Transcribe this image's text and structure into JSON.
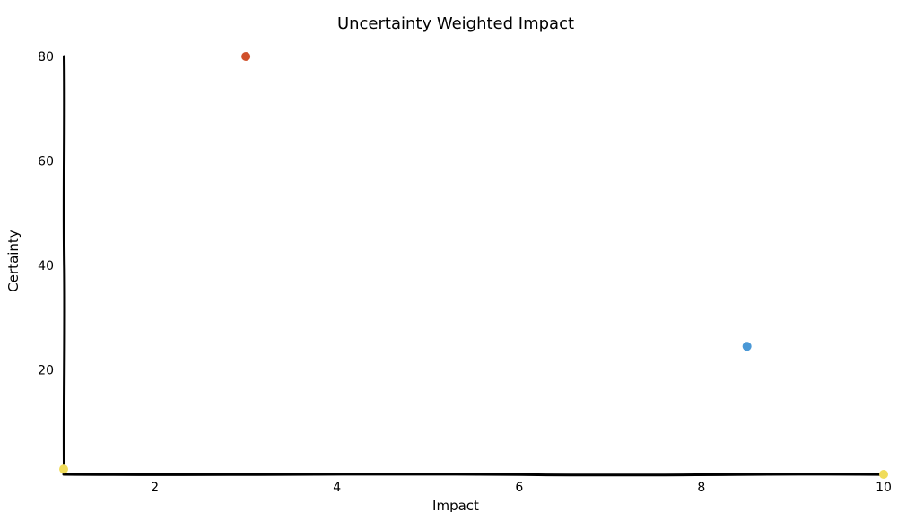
{
  "chart_data": {
    "type": "scatter",
    "title": "Uncertainty Weighted Impact",
    "xlabel": "Impact",
    "ylabel": "Certainty",
    "xlim": [
      1,
      10
    ],
    "ylim": [
      0,
      80
    ],
    "x_ticks": [
      2,
      4,
      6,
      8,
      10
    ],
    "y_ticks": [
      20,
      40,
      60,
      80
    ],
    "grid": false,
    "points": [
      {
        "x": 3,
        "y": 80,
        "color": "#d0502a"
      },
      {
        "x": 8.5,
        "y": 24.5,
        "color": "#4a98d6"
      },
      {
        "x": 1,
        "y": 1,
        "color": "#f0dc5a"
      },
      {
        "x": 10,
        "y": 0,
        "color": "#f0dc5a"
      }
    ]
  }
}
